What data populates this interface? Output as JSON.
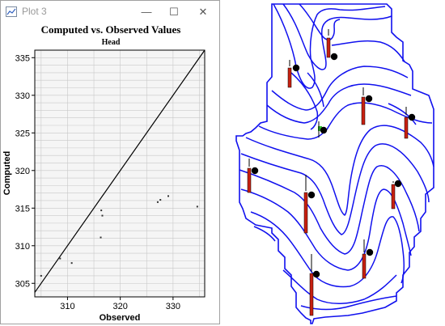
{
  "window": {
    "title": "Plot 3",
    "minimize_glyph": "—",
    "maximize_glyph": "☐",
    "close_glyph": "✕",
    "icons": {
      "app": "chart-app-icon",
      "minimize": "minimize-icon",
      "maximize": "maximize-icon",
      "close": "close-icon"
    }
  },
  "chart_data": {
    "type": "scatter",
    "title": "Computed vs. Observed Values",
    "subtitle": "Head",
    "xlabel": "Observed",
    "ylabel": "Computed",
    "xlim": [
      303.8,
      336
    ],
    "ylim": [
      303.2,
      336
    ],
    "xticks": [
      310,
      320,
      330
    ],
    "yticks": [
      305,
      310,
      315,
      320,
      325,
      330,
      335
    ],
    "grid": true,
    "reference_line": "y = x",
    "x": [
      305.0,
      308.6,
      310.8,
      316.3,
      316.4,
      316.6,
      327.1,
      327.6,
      329.1,
      334.6
    ],
    "y": [
      306.0,
      308.3,
      307.7,
      311.1,
      314.7,
      314.0,
      315.8,
      316.1,
      316.6,
      315.2
    ],
    "colors": {
      "line": "#000000",
      "points": "#333333",
      "grid": "#c8c8c8",
      "plot_bg": "#f5f5f5"
    }
  },
  "map": {
    "description_icons": [
      "boundary",
      "contour-lines",
      "observation-wells"
    ],
    "colors": {
      "contour": "#1010ee",
      "well_bar": "#c82010",
      "well_marker": "#000000",
      "green_marker": "#30c030"
    }
  }
}
